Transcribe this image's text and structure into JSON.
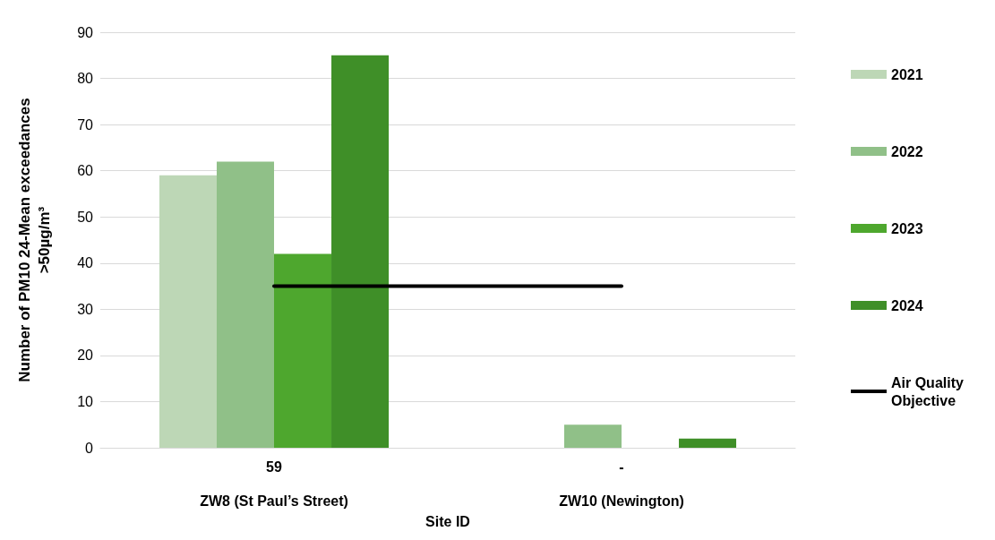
{
  "chart_data": {
    "type": "bar",
    "xlabel": "Site ID",
    "ylabel": "Number of PM10 24-Mean exceedances\n>50µg/m³",
    "categories": [
      "59\nZW8 (St Paul’s Street)",
      "-\nZW10 (Newington)"
    ],
    "series": [
      {
        "name": "2021",
        "color": "#bdd7b6",
        "values": [
          59,
          null
        ]
      },
      {
        "name": "2022",
        "color": "#90c088",
        "values": [
          62,
          5
        ]
      },
      {
        "name": "2023",
        "color": "#4ea72e",
        "values": [
          42,
          null
        ]
      },
      {
        "name": "2024",
        "color": "#3f8f28",
        "values": [
          85,
          2
        ]
      },
      {
        "name": "Air Quality Objective",
        "type": "line",
        "color": "#000000",
        "values": [
          35,
          35
        ],
        "marker": "none"
      }
    ],
    "ylim": [
      0,
      90
    ],
    "yticks": [
      0,
      10,
      20,
      30,
      40,
      50,
      60,
      70,
      80,
      90
    ],
    "grid": "y",
    "legend": "right"
  }
}
